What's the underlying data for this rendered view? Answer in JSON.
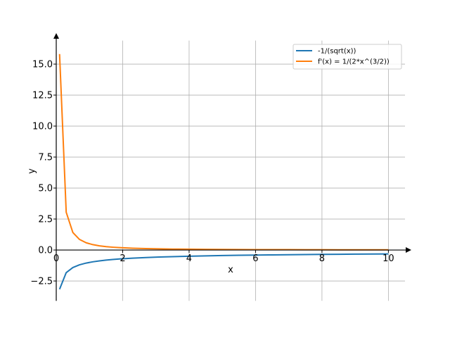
{
  "chart_data": {
    "type": "line",
    "xlabel": "x",
    "ylabel": "y",
    "xlim": [
      0,
      10.5
    ],
    "ylim": [
      -4.1,
      16.9
    ],
    "xticks": [
      0,
      2,
      4,
      6,
      8,
      10
    ],
    "xtick_labels": [
      "0",
      "2",
      "4",
      "6",
      "8",
      "10"
    ],
    "yticks": [
      -2.5,
      0.0,
      2.5,
      5.0,
      7.5,
      10.0,
      12.5,
      15.0
    ],
    "ytick_labels": [
      "−2.5",
      "0.0",
      "2.5",
      "5.0",
      "7.5",
      "10.0",
      "12.5",
      "15.0"
    ],
    "grid": true,
    "legend_position": "top-right",
    "colors": {
      "series1": "#1f77b4",
      "series2": "#ff7f0e",
      "grid": "#b0b0b0",
      "axis": "#000000"
    },
    "x": [
      0.1,
      0.3,
      0.5,
      0.7,
      0.9,
      1.1,
      1.3,
      1.5,
      1.7,
      1.9,
      2.3,
      2.7,
      3.1,
      3.5,
      4.0,
      4.5,
      5.0,
      5.5,
      6.0,
      6.5,
      7.0,
      7.5,
      8.0,
      8.5,
      9.0,
      9.5,
      10.0
    ],
    "series": [
      {
        "name": "-1/(sqrt(x))",
        "values": [
          -3.162,
          -1.826,
          -1.414,
          -1.195,
          -1.054,
          -0.953,
          -0.877,
          -0.816,
          -0.767,
          -0.725,
          -0.659,
          -0.609,
          -0.568,
          -0.535,
          -0.5,
          -0.471,
          -0.447,
          -0.426,
          -0.408,
          -0.392,
          -0.378,
          -0.365,
          -0.354,
          -0.343,
          -0.333,
          -0.324,
          -0.316
        ]
      },
      {
        "name": "f'(x) = 1/(2*x^(3/2))",
        "values": [
          15.811,
          3.043,
          1.414,
          0.854,
          0.585,
          0.433,
          0.337,
          0.272,
          0.226,
          0.191,
          0.143,
          0.113,
          0.092,
          0.076,
          0.063,
          0.052,
          0.045,
          0.039,
          0.034,
          0.03,
          0.027,
          0.024,
          0.022,
          0.02,
          0.019,
          0.017,
          0.016
        ]
      }
    ]
  }
}
